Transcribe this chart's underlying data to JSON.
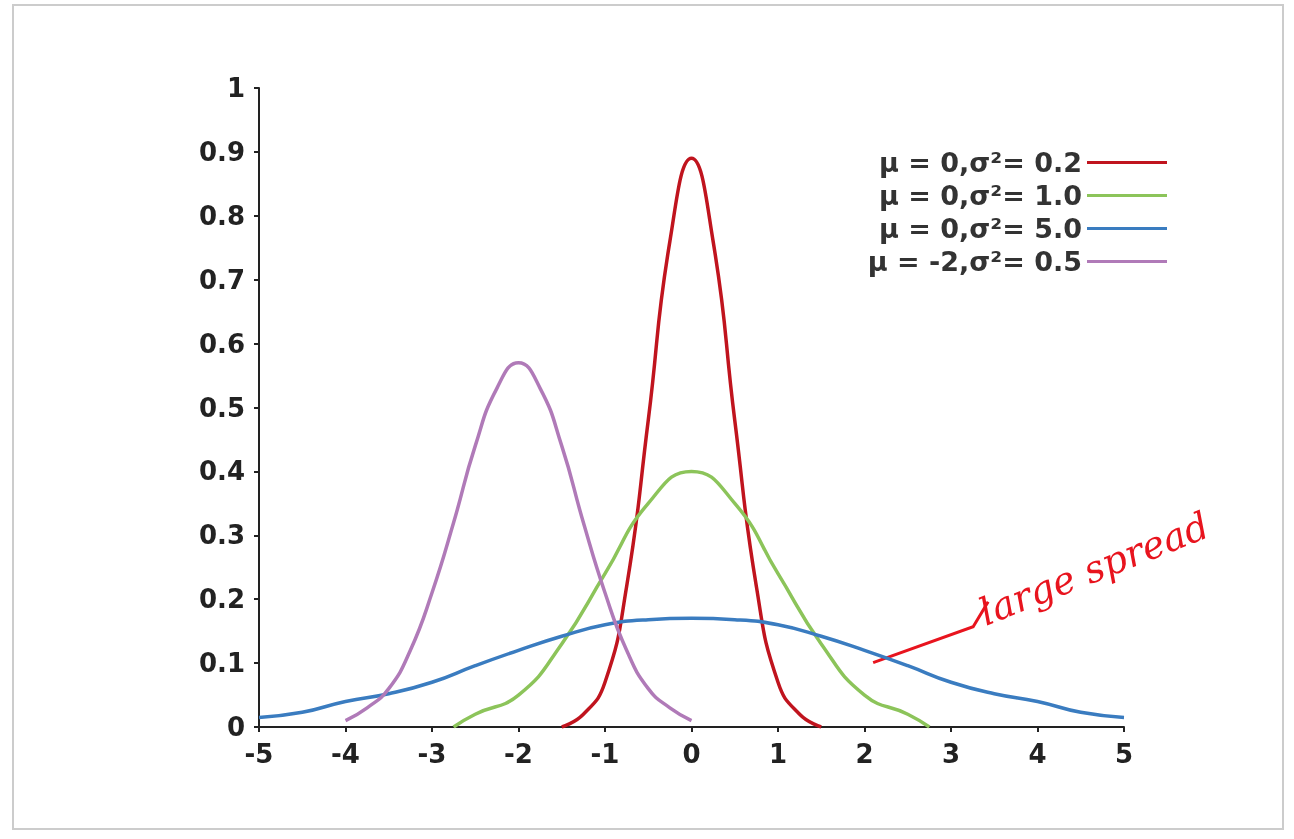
{
  "chart_data": {
    "type": "line",
    "xlim": [
      -5,
      5
    ],
    "xticks": [
      -5,
      -4,
      -3,
      -2,
      -1,
      0,
      1,
      2,
      3,
      4,
      5
    ],
    "ylim": [
      0,
      1
    ],
    "yticks": [
      0,
      0.1,
      0.2,
      0.3,
      0.4,
      0.5,
      0.6,
      0.7,
      0.8,
      0.9,
      1
    ],
    "grid": false,
    "legend": "top right",
    "marker": "none",
    "line_style": "solid",
    "series": [
      {
        "name": "μ = 0,σ²= 0.2",
        "color": "#c0141e",
        "x": [
          -1.5,
          -1.25,
          -1,
          -0.75,
          -0.5,
          -0.25,
          0,
          0.25,
          0.5,
          0.75,
          1,
          1.25,
          1.5
        ],
        "values": [
          0,
          0.02,
          0.07,
          0.22,
          0.48,
          0.76,
          0.89,
          0.76,
          0.48,
          0.22,
          0.07,
          0.02,
          0
        ]
      },
      {
        "name": "μ = 0,σ²= 1.0",
        "color": "#8cc45a",
        "x": [
          -2.75,
          -2.5,
          -2,
          -1.5,
          -1,
          -0.5,
          0,
          0.5,
          1,
          1.5,
          2,
          2.5,
          2.75
        ],
        "values": [
          0,
          0.02,
          0.05,
          0.13,
          0.24,
          0.35,
          0.4,
          0.35,
          0.24,
          0.13,
          0.05,
          0.02,
          0
        ]
      },
      {
        "name": "μ = 0,σ²= 5.0",
        "color": "#3a7cc0",
        "x": [
          -5,
          -4.5,
          -4,
          -3.5,
          -3,
          -2.5,
          -2,
          -1.5,
          -1,
          -0.5,
          0,
          0.5,
          1,
          1.5,
          2,
          2.5,
          3,
          3.5,
          4,
          4.5,
          5
        ],
        "values": [
          0.015,
          0.023,
          0.04,
          0.052,
          0.07,
          0.096,
          0.12,
          0.142,
          0.16,
          0.168,
          0.17,
          0.168,
          0.16,
          0.142,
          0.12,
          0.096,
          0.07,
          0.052,
          0.04,
          0.023,
          0.015
        ]
      },
      {
        "name": "μ = -2,σ²= 0.5",
        "color": "#b07ab8",
        "x": [
          -4,
          -3.75,
          -3.5,
          -3.25,
          -3,
          -2.75,
          -2.5,
          -2.25,
          -2,
          -1.75,
          -1.5,
          -1.25,
          -1,
          -0.75,
          -0.5,
          -0.25,
          0
        ],
        "values": [
          0.01,
          0.03,
          0.06,
          0.12,
          0.21,
          0.32,
          0.44,
          0.53,
          0.57,
          0.53,
          0.44,
          0.32,
          0.21,
          0.12,
          0.06,
          0.03,
          0.01
        ]
      }
    ],
    "annotations": [
      {
        "text": "large spread",
        "x": 2.1,
        "y": 0.11
      }
    ]
  }
}
